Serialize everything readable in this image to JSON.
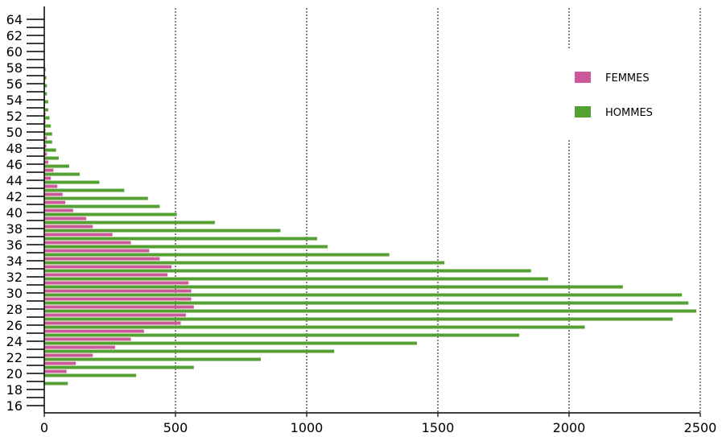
{
  "chart_data": {
    "type": "bar",
    "orientation": "horizontal",
    "categories": [
      "16",
      "17",
      "18",
      "19",
      "20",
      "21",
      "22",
      "23",
      "24",
      "25",
      "26",
      "27",
      "28",
      "29",
      "30",
      "31",
      "32",
      "33",
      "34",
      "35",
      "36",
      "37",
      "38",
      "39",
      "40",
      "41",
      "42",
      "43",
      "44",
      "45",
      "46",
      "47",
      "48",
      "49",
      "50",
      "51",
      "52",
      "53",
      "54",
      "55",
      "56",
      "57",
      "58",
      "59",
      "60",
      "61",
      "62",
      "63",
      "64"
    ],
    "series": [
      {
        "name": "FEMMES",
        "color": "#cc5a9a",
        "values": [
          0,
          0,
          0,
          0,
          85,
          120,
          185,
          270,
          330,
          380,
          520,
          540,
          570,
          560,
          560,
          550,
          470,
          485,
          440,
          400,
          330,
          260,
          185,
          160,
          110,
          80,
          70,
          50,
          25,
          35,
          15,
          10,
          8,
          10,
          5,
          5,
          5,
          3,
          3,
          2,
          2,
          2,
          2,
          0,
          0,
          0,
          0,
          0,
          0
        ]
      },
      {
        "name": "HOMMES",
        "color": "#54a032",
        "values": [
          0,
          0,
          0,
          90,
          350,
          570,
          825,
          1105,
          1420,
          1810,
          2060,
          2395,
          2485,
          2455,
          2430,
          2205,
          1920,
          1855,
          1525,
          1315,
          1080,
          1040,
          900,
          650,
          505,
          440,
          395,
          305,
          210,
          135,
          95,
          55,
          45,
          30,
          30,
          25,
          20,
          15,
          15,
          10,
          10,
          8,
          5,
          0,
          0,
          0,
          0,
          0,
          0
        ]
      }
    ],
    "xlim": [
      0,
      2500
    ],
    "x_ticks": [
      0,
      500,
      1000,
      1500,
      2000,
      2500
    ],
    "y_tick_labels": [
      "16",
      "18",
      "20",
      "22",
      "24",
      "26",
      "28",
      "30",
      "32",
      "34",
      "36",
      "38",
      "40",
      "42",
      "44",
      "46",
      "48",
      "50",
      "52",
      "54",
      "56",
      "58",
      "60",
      "62",
      "64"
    ],
    "grid": "vertical dotted",
    "legend_placement": "right"
  }
}
